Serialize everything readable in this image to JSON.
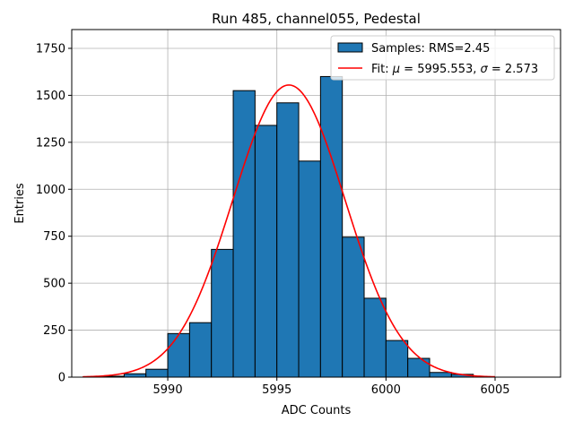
{
  "chart_data": {
    "type": "bar",
    "title": "Run 485, channel055, Pedestal",
    "xlabel": "ADC Counts",
    "ylabel": "Entries",
    "xlim": [
      5985.6,
      6008.0
    ],
    "ylim": [
      0,
      1850
    ],
    "xticks": [
      5990,
      5995,
      6000,
      6005
    ],
    "yticks": [
      0,
      250,
      500,
      750,
      1000,
      1250,
      1500,
      1750
    ],
    "grid": true,
    "legend_position": "top-right",
    "bin_width": 1,
    "series": [
      {
        "name": "Samples: RMS=2.45",
        "kind": "histogram",
        "color": "#1f77b4",
        "edgecolor": "#000000",
        "bin_edges": [
          5987,
          5988,
          5989,
          5990,
          5991,
          5992,
          5993,
          5994,
          5995,
          5996,
          5997,
          5998,
          5999,
          6000,
          6001,
          6002,
          6003,
          6004
        ],
        "counts": [
          5,
          18,
          42,
          232,
          290,
          680,
          1525,
          1340,
          1460,
          1150,
          1600,
          745,
          420,
          195,
          100,
          25,
          15
        ]
      },
      {
        "name_prefix": "Fit: ",
        "name_mu_symbol": "μ",
        "name_mu_text": " = 5995.553, ",
        "name_sigma_symbol": "σ",
        "name_sigma_text": " = 2.573",
        "kind": "gaussian-fit",
        "color": "#ff0000",
        "mu": 5995.553,
        "sigma": 2.573,
        "amplitude": 1555,
        "x_range": [
          5986.1,
          6005
        ]
      }
    ]
  }
}
